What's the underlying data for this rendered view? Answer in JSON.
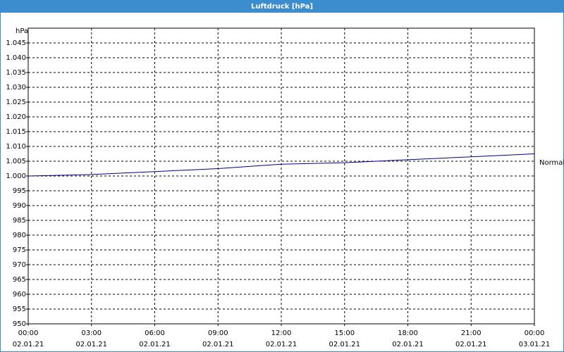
{
  "chart_data": {
    "type": "line",
    "title": "Luftdruck [hPa]",
    "y_label": "hPa",
    "x": [
      0,
      3,
      6,
      9,
      12,
      15,
      18,
      21,
      24
    ],
    "series": [
      {
        "name": "Normal",
        "color": "#000080",
        "values": [
          1000,
          1000.5,
          1001.5,
          1002.5,
          1004,
          1004.5,
          1005.5,
          1006.5,
          1007.5
        ]
      }
    ],
    "xlim": [
      0,
      24
    ],
    "xticks": [
      {
        "value": 0,
        "label": "00:00"
      },
      {
        "value": 3,
        "label": "03:00"
      },
      {
        "value": 6,
        "label": "06:00"
      },
      {
        "value": 9,
        "label": "09:00"
      },
      {
        "value": 12,
        "label": "12:00"
      },
      {
        "value": 15,
        "label": "15:00"
      },
      {
        "value": 18,
        "label": "18:00"
      },
      {
        "value": 21,
        "label": "21:00"
      },
      {
        "value": 24,
        "label": "00:00"
      }
    ],
    "xtick_dates": [
      "02.01.21",
      "02.01.21",
      "02.01.21",
      "02.01.21",
      "02.01.21",
      "02.01.21",
      "02.01.21",
      "02.01.21",
      "03.01.21"
    ],
    "ylim": [
      950,
      1050
    ],
    "yticks": [
      950,
      955,
      960,
      965,
      970,
      975,
      980,
      985,
      990,
      995,
      {
        "value": 1000,
        "label": "1.000"
      },
      {
        "value": 1005,
        "label": "1.005"
      },
      {
        "value": 1010,
        "label": "1.010"
      },
      {
        "value": 1015,
        "label": "1.015"
      },
      {
        "value": 1020,
        "label": "1.020"
      },
      {
        "value": 1025,
        "label": "1.025"
      },
      {
        "value": 1030,
        "label": "1.030"
      },
      {
        "value": 1035,
        "label": "1.035"
      },
      {
        "value": 1040,
        "label": "1.040"
      },
      {
        "value": 1045,
        "label": "1.045"
      }
    ],
    "grid": true
  }
}
